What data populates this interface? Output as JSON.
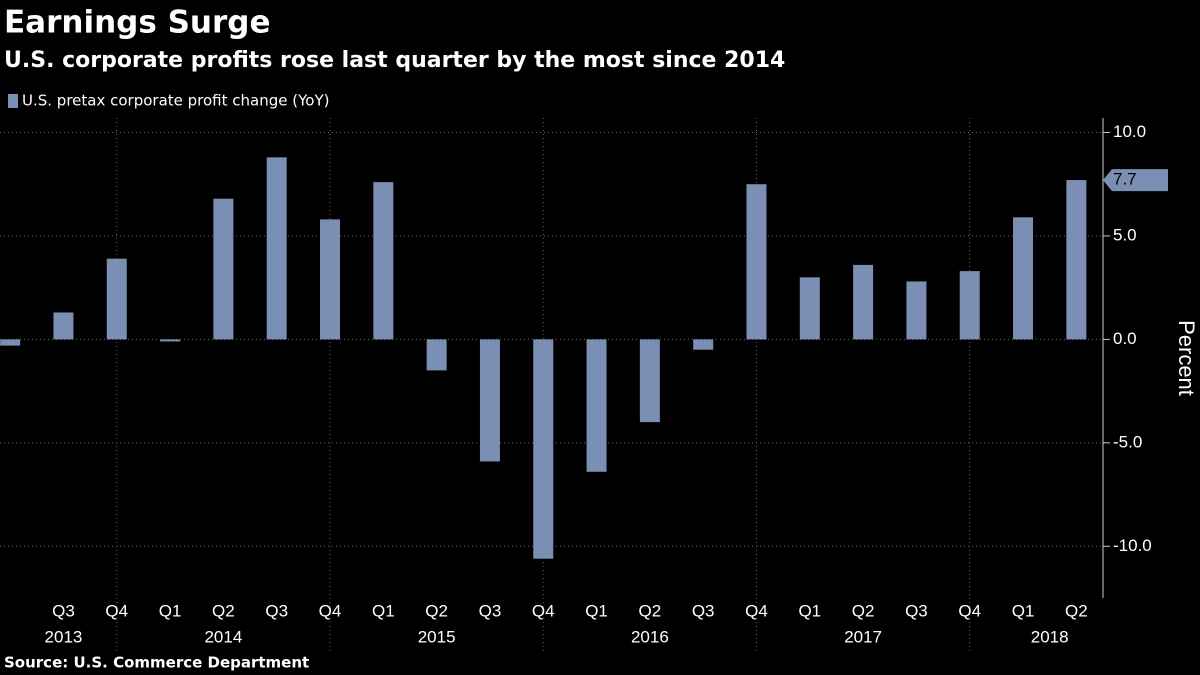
{
  "chart_data": {
    "type": "bar",
    "title": "Earnings Surge",
    "subtitle": "U.S. corporate profits rose last quarter by the most since 2014",
    "y_label": "Percent",
    "source": "Source: U.S. Commerce Department",
    "categories": [
      null,
      "Q3",
      "Q4",
      "Q1",
      "Q2",
      "Q3",
      "Q4",
      "Q1",
      "Q2",
      "Q3",
      "Q4",
      "Q1",
      "Q2",
      "Q3",
      "Q4",
      "Q1",
      "Q2",
      "Q3",
      "Q4",
      "Q1",
      "Q2"
    ],
    "years": [
      null,
      "2013",
      null,
      null,
      "2014",
      null,
      null,
      null,
      "2015",
      null,
      null,
      null,
      "2016",
      null,
      null,
      null,
      "2017",
      null,
      null,
      "2018",
      null
    ],
    "series": [
      {
        "name": "U.S. pretax corporate profit change (YoY)",
        "color": "#7a8fb3",
        "values": [
          -0.3,
          1.3,
          3.9,
          -0.1,
          6.8,
          8.8,
          5.8,
          7.6,
          -1.5,
          -5.9,
          -10.6,
          -6.4,
          -4.0,
          -0.5,
          7.5,
          3.0,
          3.6,
          2.8,
          3.3,
          5.9,
          7.7
        ]
      }
    ],
    "ylim": [
      -12.5,
      10.7
    ],
    "yticks": [
      {
        "value": -10,
        "label": "-10.0"
      },
      {
        "value": -5,
        "label": "-5.0"
      },
      {
        "value": 0,
        "label": "0.0"
      },
      {
        "value": 5,
        "label": "5.0"
      },
      {
        "value": 10,
        "label": "10.0"
      }
    ],
    "grid": true
  }
}
